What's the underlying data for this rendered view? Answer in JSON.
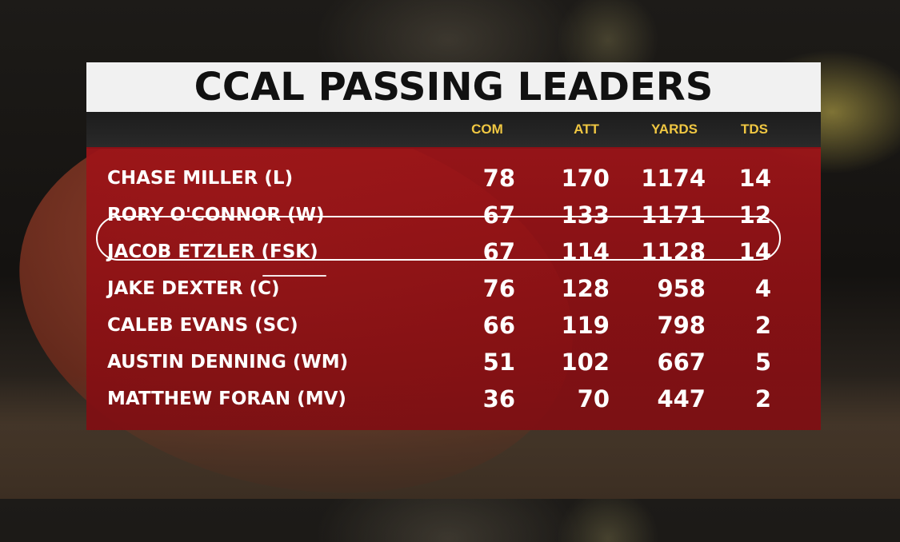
{
  "title": "CCAL PASSING LEADERS",
  "columns": {
    "com": "COM",
    "att": "ATT",
    "yards": "YARDS",
    "tds": "TDS"
  },
  "rows": [
    {
      "player": "CHASE MILLER (L)",
      "com": "78",
      "att": "170",
      "yards": "1174",
      "tds": "14"
    },
    {
      "player": "RORY O'CONNOR (W)",
      "com": "67",
      "att": "133",
      "yards": "1171",
      "tds": "12"
    },
    {
      "player": "JACOB ETZLER (FSK)",
      "com": "67",
      "att": "114",
      "yards": "1128",
      "tds": "14"
    },
    {
      "player": "JAKE DEXTER (C)",
      "com": "76",
      "att": "128",
      "yards": "958",
      "tds": "4"
    },
    {
      "player": "CALEB EVANS (SC)",
      "com": "66",
      "att": "119",
      "yards": "798",
      "tds": "2"
    },
    {
      "player": "AUSTIN DENNING (WM)",
      "com": "51",
      "att": "102",
      "yards": "667",
      "tds": "5"
    },
    {
      "player": "MATTHEW FORAN (MV)",
      "com": "36",
      "att": "70",
      "yards": "447",
      "tds": "2"
    }
  ],
  "colors": {
    "title_bg": "#f1f1f1",
    "header_bg": "#1c1c1c",
    "header_text": "#f0c742",
    "panel_bg": "#9e1418",
    "row_text": "#ffffff"
  }
}
